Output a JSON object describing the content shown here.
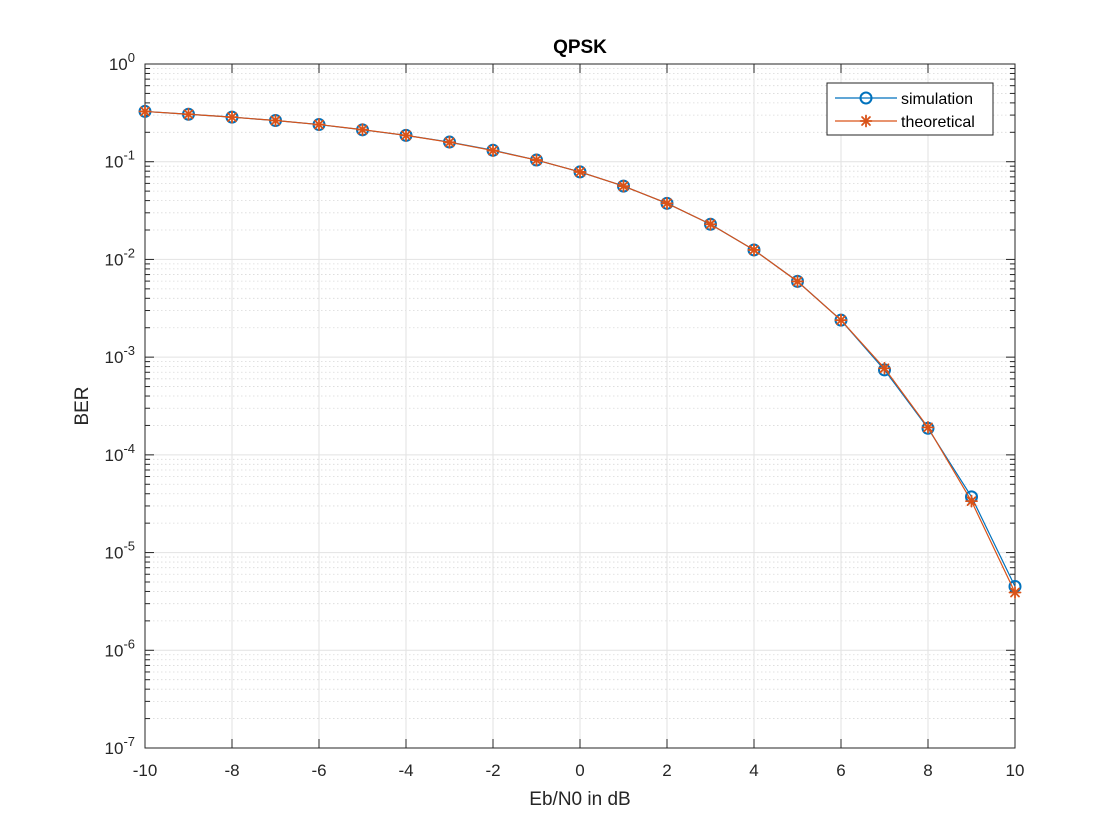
{
  "chart_data": {
    "type": "line",
    "title": "QPSK",
    "xlabel": "Eb/N0 in dB",
    "ylabel": "BER",
    "xscale": "linear",
    "yscale": "log",
    "xlim": [
      -10,
      10
    ],
    "ylim": [
      1e-07,
      1
    ],
    "xticks": [
      -10,
      -8,
      -6,
      -4,
      -2,
      0,
      2,
      4,
      6,
      8,
      10
    ],
    "xtick_labels": [
      "-10",
      "-8",
      "-6",
      "-4",
      "-2",
      "0",
      "2",
      "4",
      "6",
      "8",
      "10"
    ],
    "ytick_exponents": [
      "0",
      "-1",
      "-2",
      "-3",
      "-4",
      "-5",
      "-6",
      "-7"
    ],
    "ytick_base": "10",
    "grid": true,
    "minor_grid": true,
    "legend_position": "top-right",
    "x": [
      -10,
      -9,
      -8,
      -7,
      -6,
      -5,
      -4,
      -3,
      -2,
      -1,
      0,
      1,
      2,
      3,
      4,
      5,
      6,
      7,
      8,
      9,
      10
    ],
    "series": [
      {
        "name": "simulation",
        "marker": "circle",
        "color": "#0072BD",
        "values": [
          0.327,
          0.306,
          0.286,
          0.264,
          0.24,
          0.212,
          0.186,
          0.159,
          0.131,
          0.104,
          0.0786,
          0.0563,
          0.0375,
          0.0229,
          0.0125,
          0.00596,
          0.00239,
          0.00074,
          0.000187,
          3.72e-05,
          4.5e-06
        ]
      },
      {
        "name": "theoretical",
        "marker": "asterisk",
        "color": "#D95319",
        "values": [
          0.327,
          0.306,
          0.286,
          0.264,
          0.24,
          0.213,
          0.186,
          0.158,
          0.13,
          0.104,
          0.0786,
          0.0563,
          0.0375,
          0.0229,
          0.0125,
          0.00595,
          0.00239,
          0.00077,
          0.000191,
          3.36e-05,
          3.9e-06
        ]
      }
    ]
  }
}
